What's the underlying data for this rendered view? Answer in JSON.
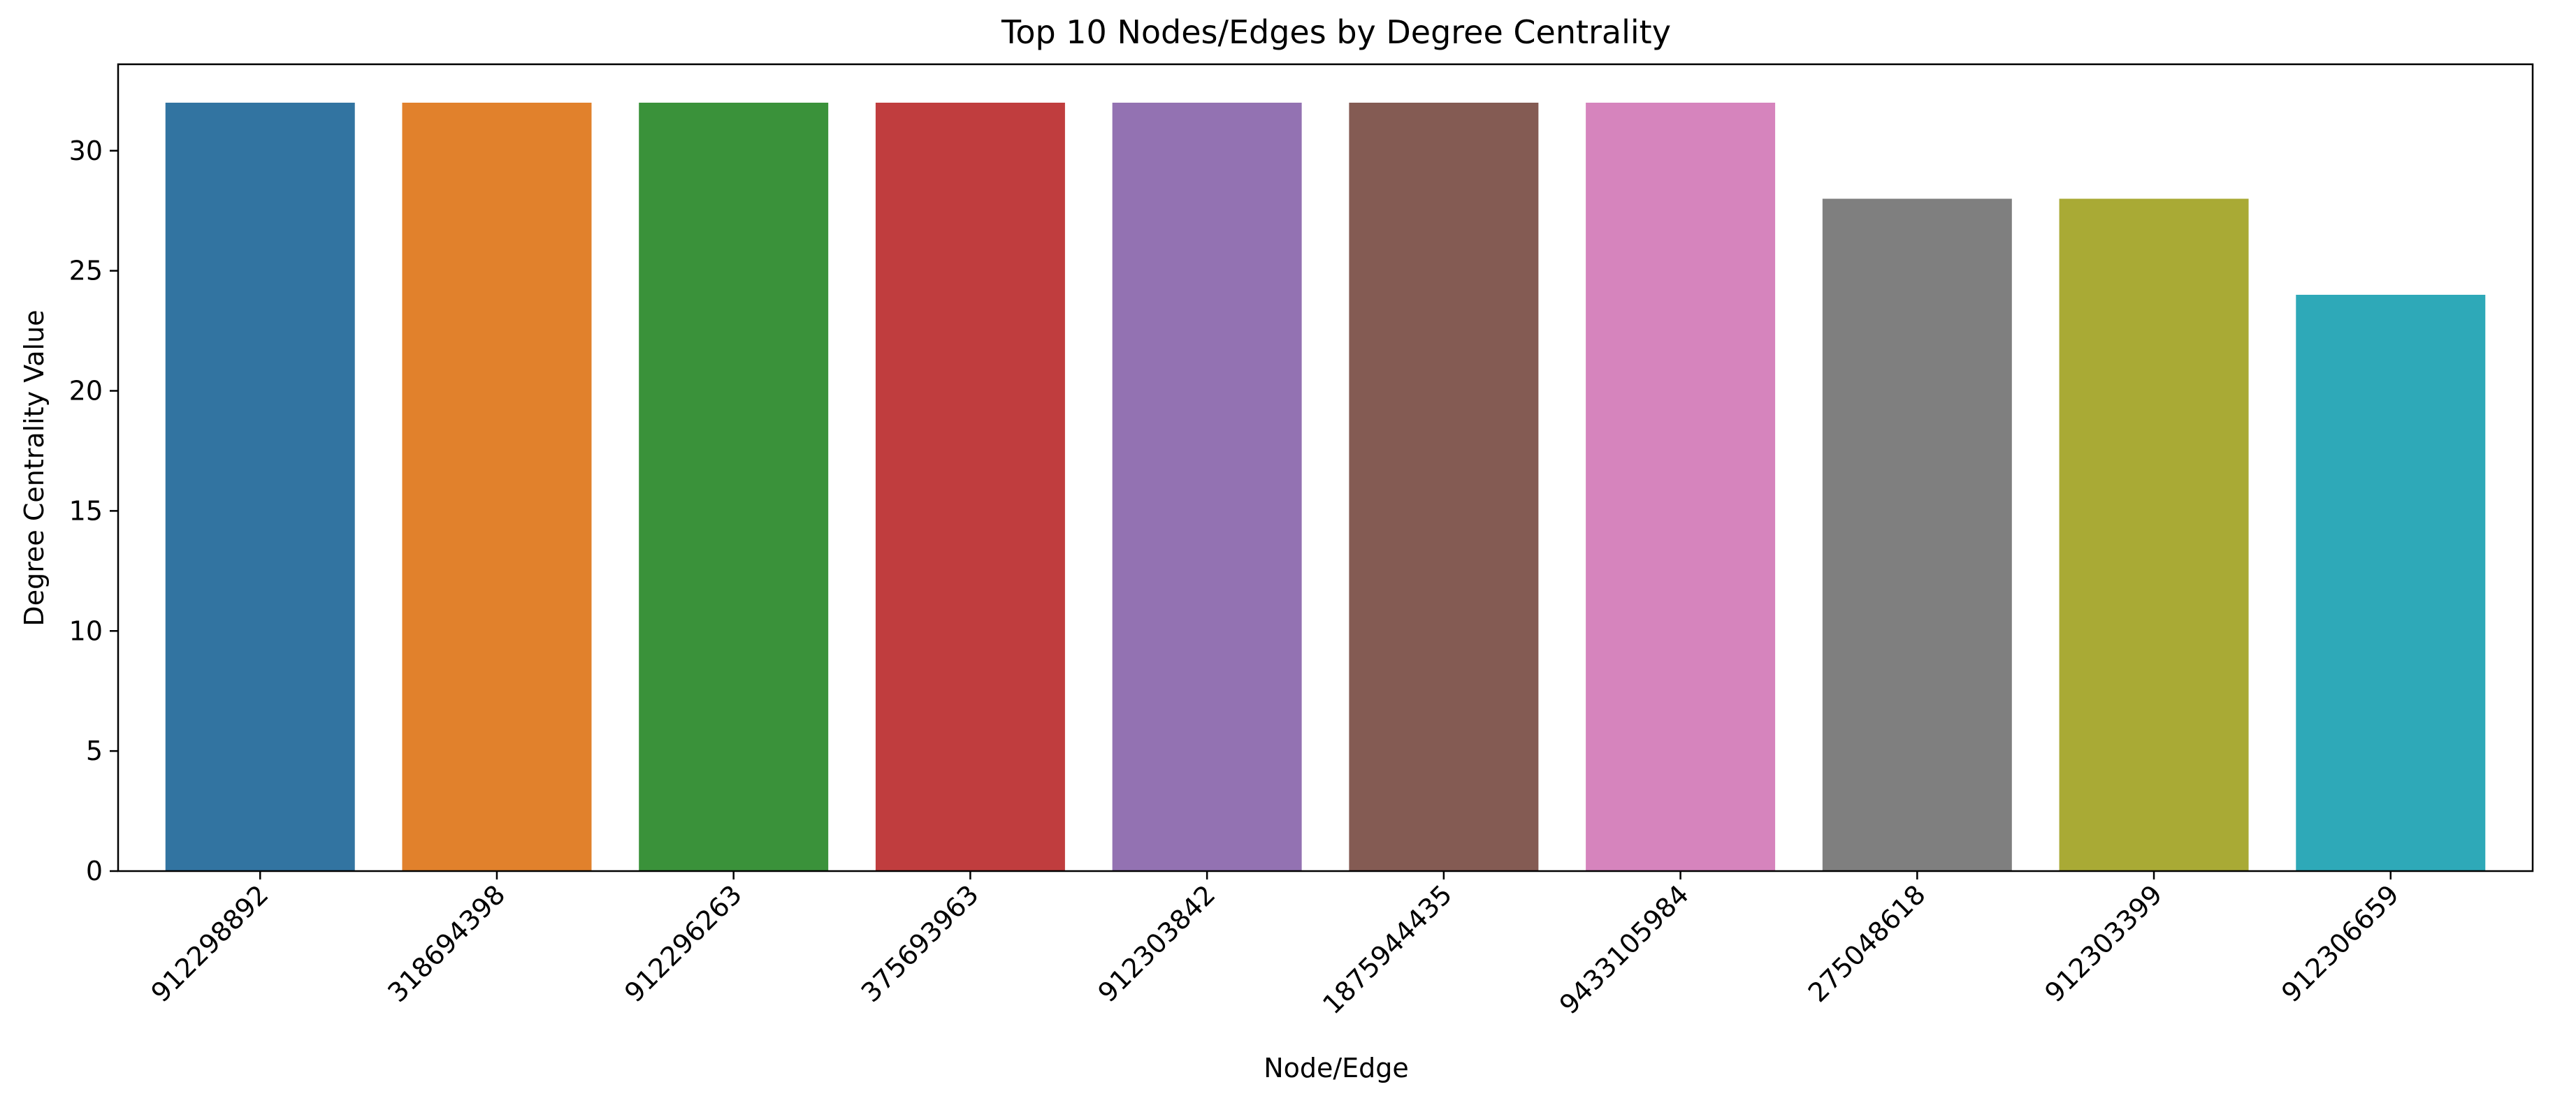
{
  "chart_data": {
    "type": "bar",
    "title": "Top 10 Nodes/Edges by Degree Centrality",
    "xlabel": "Node/Edge",
    "ylabel": "Degree Centrality Value",
    "categories": [
      "912298892",
      "318694398",
      "912296263",
      "375693963",
      "912303842",
      "1875944435",
      "9433105984",
      "275048618",
      "912303399",
      "912306659"
    ],
    "values": [
      32,
      32,
      32,
      32,
      32,
      32,
      32,
      28,
      28,
      24
    ],
    "colors": [
      "#3274a1",
      "#e1812c",
      "#3a923a",
      "#c03d3e",
      "#9372b2",
      "#845b53",
      "#d684bd",
      "#7f7f7f",
      "#a9aa35",
      "#2ea9b8"
    ],
    "ylim": [
      0,
      33.6
    ],
    "yticks": [
      0,
      5,
      10,
      15,
      20,
      25,
      30
    ],
    "grid": false,
    "legend": "none"
  }
}
